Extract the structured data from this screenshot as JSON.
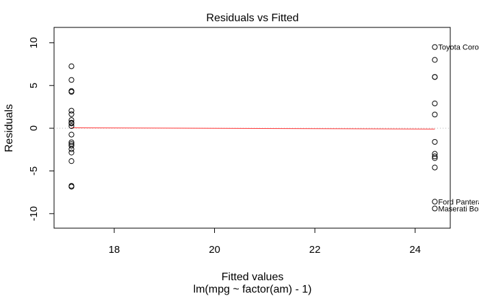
{
  "chart_data": {
    "type": "scatter",
    "title": "Residuals vs Fitted",
    "xlabel": "Fitted values",
    "subtitle": "lm(mpg ~ factor(am) - 1)",
    "ylabel": "Residuals",
    "xlim": [
      16.8,
      24.7
    ],
    "ylim": [
      -11.7,
      11.8
    ],
    "xticks": [
      18,
      20,
      22,
      24
    ],
    "yticks": [
      -10,
      -5,
      0,
      5,
      10
    ],
    "xtick_labels": [
      "18",
      "20",
      "22",
      "24"
    ],
    "ytick_labels": [
      "-10",
      "-5",
      "0",
      "5",
      "10"
    ],
    "grid": false,
    "reference_line": {
      "y": 0,
      "style": "dotted",
      "color": "#b0b0b0"
    },
    "smooth_line": {
      "color": "#ff3333",
      "points": [
        [
          17.147,
          0.05
        ],
        [
          24.392,
          -0.1
        ]
      ]
    },
    "series": [
      {
        "x": [
          17.147,
          17.147,
          17.147,
          17.147,
          17.147,
          17.147,
          17.147,
          17.147,
          17.147,
          17.147,
          17.147,
          17.147,
          17.147,
          17.147,
          17.147,
          17.147,
          17.147,
          17.147,
          17.147,
          24.392,
          24.392,
          24.392,
          24.392,
          24.392,
          24.392,
          24.392,
          24.392,
          24.392,
          24.392,
          24.392,
          24.392,
          24.392
        ],
        "y": [
          7.25,
          5.65,
          4.35,
          4.25,
          2.05,
          1.65,
          0.95,
          0.65,
          -0.75,
          -1.65,
          -1.85,
          -2.05,
          -2.45,
          -2.85,
          -3.85,
          -6.75,
          -6.85,
          0.55,
          0.25,
          9.5,
          8.0,
          6.0,
          6.0,
          2.9,
          1.6,
          -1.6,
          -3.0,
          -3.3,
          -3.5,
          -4.6,
          -8.6,
          -9.4
        ]
      }
    ],
    "annotations": [
      {
        "text": "Toyota Corolla",
        "x": 24.392,
        "y": 9.5
      },
      {
        "text": "Ford Pantera L",
        "x": 24.392,
        "y": -8.6
      },
      {
        "text": "Maserati Bora",
        "x": 24.392,
        "y": -9.4
      }
    ],
    "colors": {
      "points": "#000000",
      "smooth": "#ff3333",
      "reference": "#b0b0b0"
    }
  }
}
